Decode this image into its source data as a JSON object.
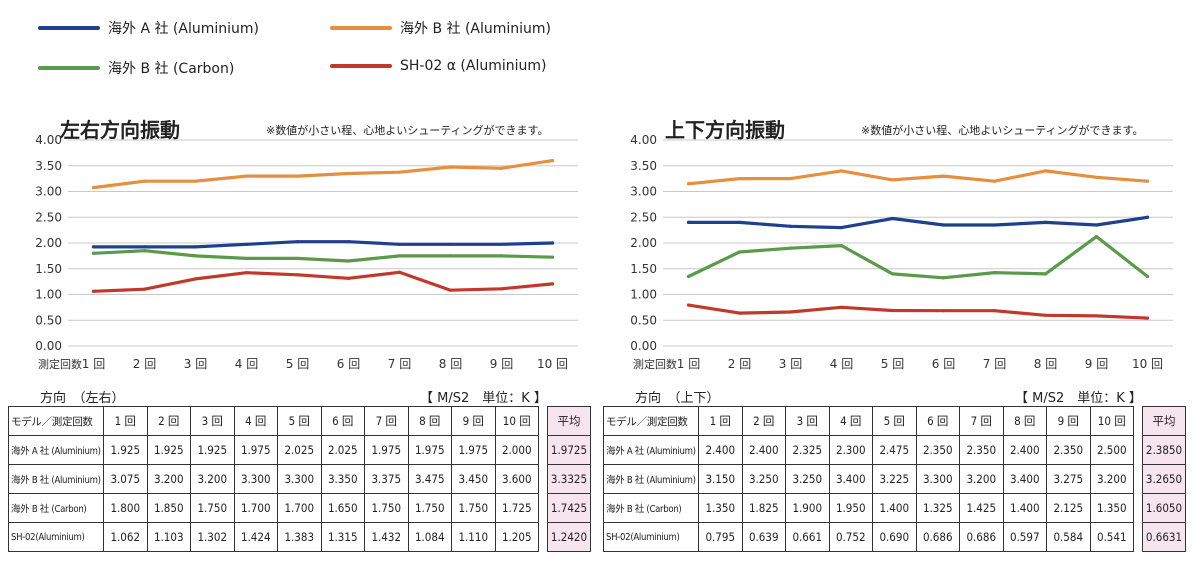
{
  "legend": [
    {
      "label": "海外 A 社 (Aluminium)",
      "color": "#1f3f8f"
    },
    {
      "label": "海外 B 社 (Aluminium)",
      "color": "#e58f3f"
    },
    {
      "label": "海外 B 社 (Carbon)",
      "color": "#5a9a4a"
    },
    {
      "label": "SH-02 α (Aluminium)",
      "color": "#c0392b"
    }
  ],
  "chart_data": [
    {
      "type": "line",
      "title": "左右方向振動",
      "note": "※数値が小さい程、心地よいシューティングができます。",
      "xlabel": "測定回数",
      "categories": [
        "1 回",
        "2 回",
        "3 回",
        "4 回",
        "5 回",
        "6 回",
        "7 回",
        "8 回",
        "9 回",
        "10 回"
      ],
      "ylim": [
        0,
        4
      ],
      "yticks": [
        "0.00",
        "0.50",
        "1.00",
        "1.50",
        "2.00",
        "2.50",
        "3.00",
        "3.50",
        "4.00"
      ],
      "grid": true,
      "series": [
        {
          "name": "海外 A 社 (Aluminium)",
          "color": "#1f3f8f",
          "values": [
            1.925,
            1.925,
            1.925,
            1.975,
            2.025,
            2.025,
            1.975,
            1.975,
            1.975,
            2.0
          ]
        },
        {
          "name": "海外 B 社 (Aluminium)",
          "color": "#e58f3f",
          "values": [
            3.075,
            3.2,
            3.2,
            3.3,
            3.3,
            3.35,
            3.375,
            3.475,
            3.45,
            3.6
          ]
        },
        {
          "name": "海外 B 社 (Carbon)",
          "color": "#5a9a4a",
          "values": [
            1.8,
            1.85,
            1.75,
            1.7,
            1.7,
            1.65,
            1.75,
            1.75,
            1.75,
            1.725
          ]
        },
        {
          "name": "SH-02 α (Aluminium)",
          "color": "#c0392b",
          "values": [
            1.062,
            1.103,
            1.302,
            1.424,
            1.383,
            1.315,
            1.432,
            1.084,
            1.11,
            1.205
          ]
        }
      ]
    },
    {
      "type": "line",
      "title": "上下方向振動",
      "note": "※数値が小さい程、心地よいシューティングができます。",
      "xlabel": "測定回数",
      "categories": [
        "1 回",
        "2 回",
        "3 回",
        "4 回",
        "5 回",
        "6 回",
        "7 回",
        "8 回",
        "9 回",
        "10 回"
      ],
      "ylim": [
        0,
        4
      ],
      "yticks": [
        "0.00",
        "0.50",
        "1.00",
        "1.50",
        "2.00",
        "2.50",
        "3.00",
        "3.50",
        "4.00"
      ],
      "grid": true,
      "series": [
        {
          "name": "海外 A 社 (Aluminium)",
          "color": "#1f3f8f",
          "values": [
            2.4,
            2.4,
            2.325,
            2.3,
            2.475,
            2.35,
            2.35,
            2.4,
            2.35,
            2.5
          ]
        },
        {
          "name": "海外 B 社 (Aluminium)",
          "color": "#e58f3f",
          "values": [
            3.15,
            3.25,
            3.25,
            3.4,
            3.225,
            3.3,
            3.2,
            3.4,
            3.275,
            3.2
          ]
        },
        {
          "name": "海外 B 社 (Carbon)",
          "color": "#5a9a4a",
          "values": [
            1.35,
            1.825,
            1.9,
            1.95,
            1.4,
            1.325,
            1.425,
            1.4,
            2.125,
            1.35
          ]
        },
        {
          "name": "SH-02 α (Aluminium)",
          "color": "#c0392b",
          "values": [
            0.795,
            0.639,
            0.661,
            0.752,
            0.69,
            0.686,
            0.686,
            0.597,
            0.584,
            0.541
          ]
        }
      ]
    }
  ],
  "tables": [
    {
      "direction": "方向　（左右）",
      "unit": "【 M/S2　単位：K 】",
      "header": [
        "モデル／測定回数",
        "1 回",
        "2 回",
        "3 回",
        "4 回",
        "5 回",
        "6 回",
        "7 回",
        "8 回",
        "9 回",
        "10 回"
      ],
      "avg_header": "平均",
      "rows": [
        {
          "label": "海外 A 社 (Aluminium)",
          "values": [
            "1.925",
            "1.925",
            "1.925",
            "1.975",
            "2.025",
            "2.025",
            "1.975",
            "1.975",
            "1.975",
            "2.000"
          ],
          "avg": "1.9725"
        },
        {
          "label": "海外 B 社 (Aluminium)",
          "values": [
            "3.075",
            "3.200",
            "3.200",
            "3.300",
            "3.300",
            "3.350",
            "3.375",
            "3.475",
            "3.450",
            "3.600"
          ],
          "avg": "3.3325"
        },
        {
          "label": "海外 B 社 (Carbon)",
          "values": [
            "1.800",
            "1.850",
            "1.750",
            "1.700",
            "1.700",
            "1.650",
            "1.750",
            "1.750",
            "1.750",
            "1.725"
          ],
          "avg": "1.7425"
        },
        {
          "label": "SH-02(Aluminium)",
          "values": [
            "1.062",
            "1.103",
            "1.302",
            "1.424",
            "1.383",
            "1.315",
            "1.432",
            "1.084",
            "1.110",
            "1.205"
          ],
          "avg": "1.2420"
        }
      ]
    },
    {
      "direction": "方向　（上下）",
      "unit": "【 M/S2　単位：K 】",
      "header": [
        "モデル／測定回数",
        "1 回",
        "2 回",
        "3 回",
        "4 回",
        "5 回",
        "6 回",
        "7 回",
        "8 回",
        "9 回",
        "10 回"
      ],
      "avg_header": "平均",
      "rows": [
        {
          "label": "海外 A 社 (Aluminium)",
          "values": [
            "2.400",
            "2.400",
            "2.325",
            "2.300",
            "2.475",
            "2.350",
            "2.350",
            "2.400",
            "2.350",
            "2.500"
          ],
          "avg": "2.3850"
        },
        {
          "label": "海外 B 社 (Aluminium)",
          "values": [
            "3.150",
            "3.250",
            "3.250",
            "3.400",
            "3.225",
            "3.300",
            "3.200",
            "3.400",
            "3.275",
            "3.200"
          ],
          "avg": "3.2650"
        },
        {
          "label": "海外 B 社 (Carbon)",
          "values": [
            "1.350",
            "1.825",
            "1.900",
            "1.950",
            "1.400",
            "1.325",
            "1.425",
            "1.400",
            "2.125",
            "1.350"
          ],
          "avg": "1.6050"
        },
        {
          "label": "SH-02(Aluminium)",
          "values": [
            "0.795",
            "0.639",
            "0.661",
            "0.752",
            "0.690",
            "0.686",
            "0.686",
            "0.597",
            "0.584",
            "0.541"
          ],
          "avg": "0.6631"
        }
      ]
    }
  ]
}
